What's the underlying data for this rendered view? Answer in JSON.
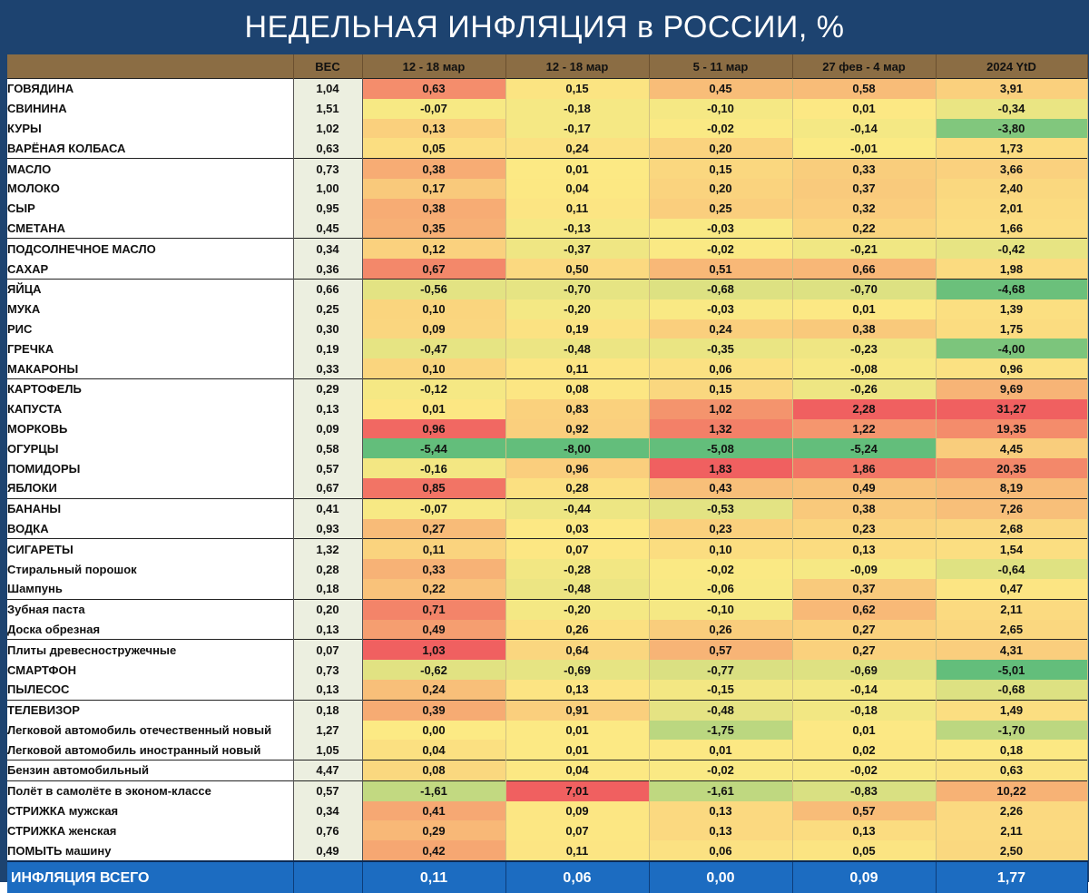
{
  "title": "НЕДЕЛЬНАЯ ИНФЛЯЦИЯ в РОССИИ, %",
  "chart_data": {
    "type": "table",
    "columns": [
      "",
      "ВЕС",
      "12 - 18 мар",
      "12 - 18 мар",
      "5 - 11 мар",
      "27 фев - 4 мар",
      "2024 YtD"
    ],
    "group_starts": [
      0,
      4,
      8,
      10,
      15,
      21,
      23,
      26,
      28,
      31,
      34,
      35
    ],
    "rows": [
      {
        "name": "ГОВЯДИНА",
        "weight": "1,04",
        "values": [
          "0,63",
          "0,15",
          "0,45",
          "0,58",
          "3,91"
        ]
      },
      {
        "name": "СВИНИНА",
        "weight": "1,51",
        "values": [
          "-0,07",
          "-0,18",
          "-0,10",
          "0,01",
          "-0,34"
        ]
      },
      {
        "name": "КУРЫ",
        "weight": "1,02",
        "values": [
          "0,13",
          "-0,17",
          "-0,02",
          "-0,14",
          "-3,80"
        ]
      },
      {
        "name": "ВАРЁНАЯ КОЛБАСА",
        "weight": "0,63",
        "values": [
          "0,05",
          "0,24",
          "0,20",
          "-0,01",
          "1,73"
        ]
      },
      {
        "name": "МАСЛО",
        "weight": "0,73",
        "values": [
          "0,38",
          "0,01",
          "0,15",
          "0,33",
          "3,66"
        ]
      },
      {
        "name": "МОЛОКО",
        "weight": "1,00",
        "values": [
          "0,17",
          "0,04",
          "0,20",
          "0,37",
          "2,40"
        ]
      },
      {
        "name": "СЫР",
        "weight": "0,95",
        "values": [
          "0,38",
          "0,11",
          "0,25",
          "0,32",
          "2,01"
        ]
      },
      {
        "name": "СМЕТАНА",
        "weight": "0,45",
        "values": [
          "0,35",
          "-0,13",
          "-0,03",
          "0,22",
          "1,66"
        ]
      },
      {
        "name": "ПОДСОЛНЕЧНОЕ МАСЛО",
        "weight": "0,34",
        "values": [
          "0,12",
          "-0,37",
          "-0,02",
          "-0,21",
          "-0,42"
        ]
      },
      {
        "name": "САХАР",
        "weight": "0,36",
        "values": [
          "0,67",
          "0,50",
          "0,51",
          "0,66",
          "1,98"
        ]
      },
      {
        "name": "ЯЙЦА",
        "weight": "0,66",
        "values": [
          "-0,56",
          "-0,70",
          "-0,68",
          "-0,70",
          "-4,68"
        ]
      },
      {
        "name": "МУКА",
        "weight": "0,25",
        "values": [
          "0,10",
          "-0,20",
          "-0,03",
          "0,01",
          "1,39"
        ]
      },
      {
        "name": "РИС",
        "weight": "0,30",
        "values": [
          "0,09",
          "0,19",
          "0,24",
          "0,38",
          "1,75"
        ]
      },
      {
        "name": "ГРЕЧКА",
        "weight": "0,19",
        "values": [
          "-0,47",
          "-0,48",
          "-0,35",
          "-0,23",
          "-4,00"
        ]
      },
      {
        "name": "МАКАРОНЫ",
        "weight": "0,33",
        "values": [
          "0,10",
          "0,11",
          "0,06",
          "-0,08",
          "0,96"
        ]
      },
      {
        "name": "КАРТОФЕЛЬ",
        "weight": "0,29",
        "values": [
          "-0,12",
          "0,08",
          "0,15",
          "-0,26",
          "9,69"
        ]
      },
      {
        "name": "КАПУСТА",
        "weight": "0,13",
        "values": [
          "0,01",
          "0,83",
          "1,02",
          "2,28",
          "31,27"
        ]
      },
      {
        "name": "МОРКОВЬ",
        "weight": "0,09",
        "values": [
          "0,96",
          "0,92",
          "1,32",
          "1,22",
          "19,35"
        ]
      },
      {
        "name": "ОГУРЦЫ",
        "weight": "0,58",
        "values": [
          "-5,44",
          "-8,00",
          "-5,08",
          "-5,24",
          "4,45"
        ]
      },
      {
        "name": "ПОМИДОРЫ",
        "weight": "0,57",
        "values": [
          "-0,16",
          "0,96",
          "1,83",
          "1,86",
          "20,35"
        ]
      },
      {
        "name": "ЯБЛОКИ",
        "weight": "0,67",
        "values": [
          "0,85",
          "0,28",
          "0,43",
          "0,49",
          "8,19"
        ]
      },
      {
        "name": "БАНАНЫ",
        "weight": "0,41",
        "values": [
          "-0,07",
          "-0,44",
          "-0,53",
          "0,38",
          "7,26"
        ]
      },
      {
        "name": "ВОДКА",
        "weight": "0,93",
        "values": [
          "0,27",
          "0,03",
          "0,23",
          "0,23",
          "2,68"
        ]
      },
      {
        "name": "СИГАРЕТЫ",
        "weight": "1,32",
        "values": [
          "0,11",
          "0,07",
          "0,10",
          "0,13",
          "1,54"
        ]
      },
      {
        "name": "Стиральный порошок",
        "weight": "0,28",
        "values": [
          "0,33",
          "-0,28",
          "-0,02",
          "-0,09",
          "-0,64"
        ]
      },
      {
        "name": "Шампунь",
        "weight": "0,18",
        "values": [
          "0,22",
          "-0,48",
          "-0,06",
          "0,37",
          "0,47"
        ]
      },
      {
        "name": "Зубная паста",
        "weight": "0,20",
        "values": [
          "0,71",
          "-0,20",
          "-0,10",
          "0,62",
          "2,11"
        ]
      },
      {
        "name": "Доска обрезная",
        "weight": "0,13",
        "values": [
          "0,49",
          "0,26",
          "0,26",
          "0,27",
          "2,65"
        ]
      },
      {
        "name": "Плиты древесностружечные",
        "weight": "0,07",
        "values": [
          "1,03",
          "0,64",
          "0,57",
          "0,27",
          "4,31"
        ]
      },
      {
        "name": "СМАРТФОН",
        "weight": "0,73",
        "values": [
          "-0,62",
          "-0,69",
          "-0,77",
          "-0,69",
          "-5,01"
        ]
      },
      {
        "name": "ПЫЛЕСОС",
        "weight": "0,13",
        "values": [
          "0,24",
          "0,13",
          "-0,15",
          "-0,14",
          "-0,68"
        ]
      },
      {
        "name": "ТЕЛЕВИЗОР",
        "weight": "0,18",
        "values": [
          "0,39",
          "0,91",
          "-0,48",
          "-0,18",
          "1,49"
        ]
      },
      {
        "name": "Легковой автомобиль отечественный новый",
        "weight": "1,27",
        "values": [
          "0,00",
          "0,01",
          "-1,75",
          "0,01",
          "-1,70"
        ]
      },
      {
        "name": "Легковой автомобиль иностранный новый",
        "weight": "1,05",
        "values": [
          "0,04",
          "0,01",
          "0,01",
          "0,02",
          "0,18"
        ]
      },
      {
        "name": "Бензин автомобильный",
        "weight": "4,47",
        "values": [
          "0,08",
          "0,04",
          "-0,02",
          "-0,02",
          "0,63"
        ]
      },
      {
        "name": "Полёт в самолёте в эконом-классе",
        "weight": "0,57",
        "values": [
          "-1,61",
          "7,01",
          "-1,61",
          "-0,83",
          "10,22"
        ]
      },
      {
        "name": "СТРИЖКА мужская",
        "weight": "0,34",
        "values": [
          "0,41",
          "0,09",
          "0,13",
          "0,57",
          "2,26"
        ]
      },
      {
        "name": "СТРИЖКА женская",
        "weight": "0,76",
        "values": [
          "0,29",
          "0,07",
          "0,13",
          "0,13",
          "2,11"
        ]
      },
      {
        "name": "ПОМЫТЬ машину",
        "weight": "0,49",
        "values": [
          "0,42",
          "0,11",
          "0,06",
          "0,05",
          "2,50"
        ]
      }
    ],
    "total": {
      "name": "ИНФЛЯЦИЯ ВСЕГО",
      "weight": "",
      "values": [
        "0,11",
        "0,06",
        "0,00",
        "0,09",
        "1,77"
      ]
    }
  }
}
